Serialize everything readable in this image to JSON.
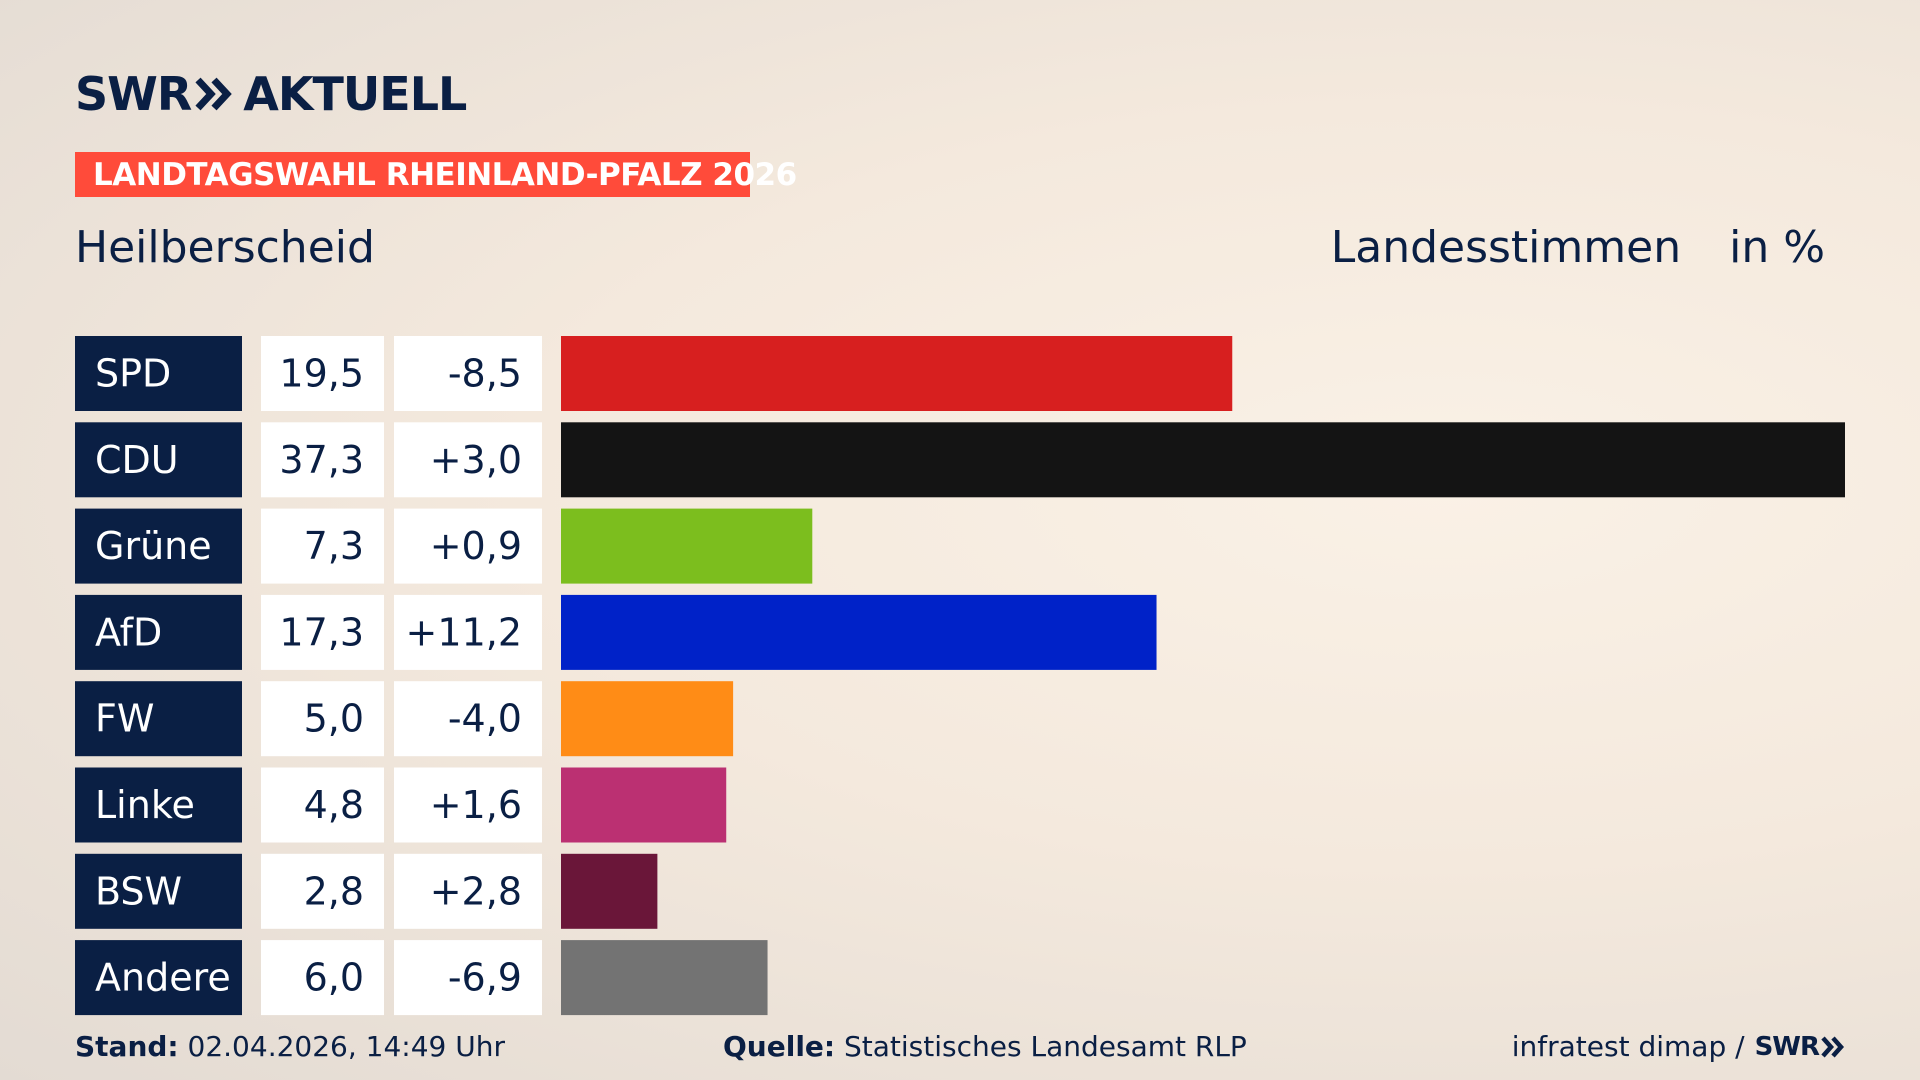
{
  "brand": {
    "logo_swr": "SWR",
    "logo_suffix": "AKTUELL"
  },
  "header": {
    "badge": "LANDTAGSWAHL RHEINLAND-PFALZ 2026",
    "place": "Heilberscheid",
    "metric_label": "Landesstimmen",
    "metric_unit": "in %"
  },
  "chart_data": {
    "type": "bar",
    "orientation": "horizontal",
    "categories": [
      "SPD",
      "CDU",
      "Grüne",
      "AfD",
      "FW",
      "Linke",
      "BSW",
      "Andere"
    ],
    "values": [
      19.5,
      37.3,
      7.3,
      17.3,
      5.0,
      4.8,
      2.8,
      6.0
    ],
    "value_labels": [
      "19,5",
      "37,3",
      "7,3",
      "17,3",
      "5,0",
      "4,8",
      "2,8",
      "6,0"
    ],
    "changes": [
      -8.5,
      3.0,
      0.9,
      11.2,
      -4.0,
      1.6,
      2.8,
      -6.9
    ],
    "change_labels": [
      "-8,5",
      "+3,0",
      "+0,9",
      "+11,2",
      "-4,0",
      "+1,6",
      "+2,8",
      "-6,9"
    ],
    "colors": [
      "#d71f1f",
      "#141414",
      "#7cbe1e",
      "#0022c8",
      "#ff8c16",
      "#bb3072",
      "#6a1639",
      "#737373"
    ],
    "label_background": "#0a1f44",
    "xlim": [
      0,
      37.3
    ]
  },
  "footer": {
    "stand_label": "Stand:",
    "stand_value": "02.04.2026, 14:49 Uhr",
    "source_label": "Quelle:",
    "source_value": "Statistisches Landesamt RLP",
    "credit": "infratest dimap /",
    "credit_logo": "SWR"
  }
}
